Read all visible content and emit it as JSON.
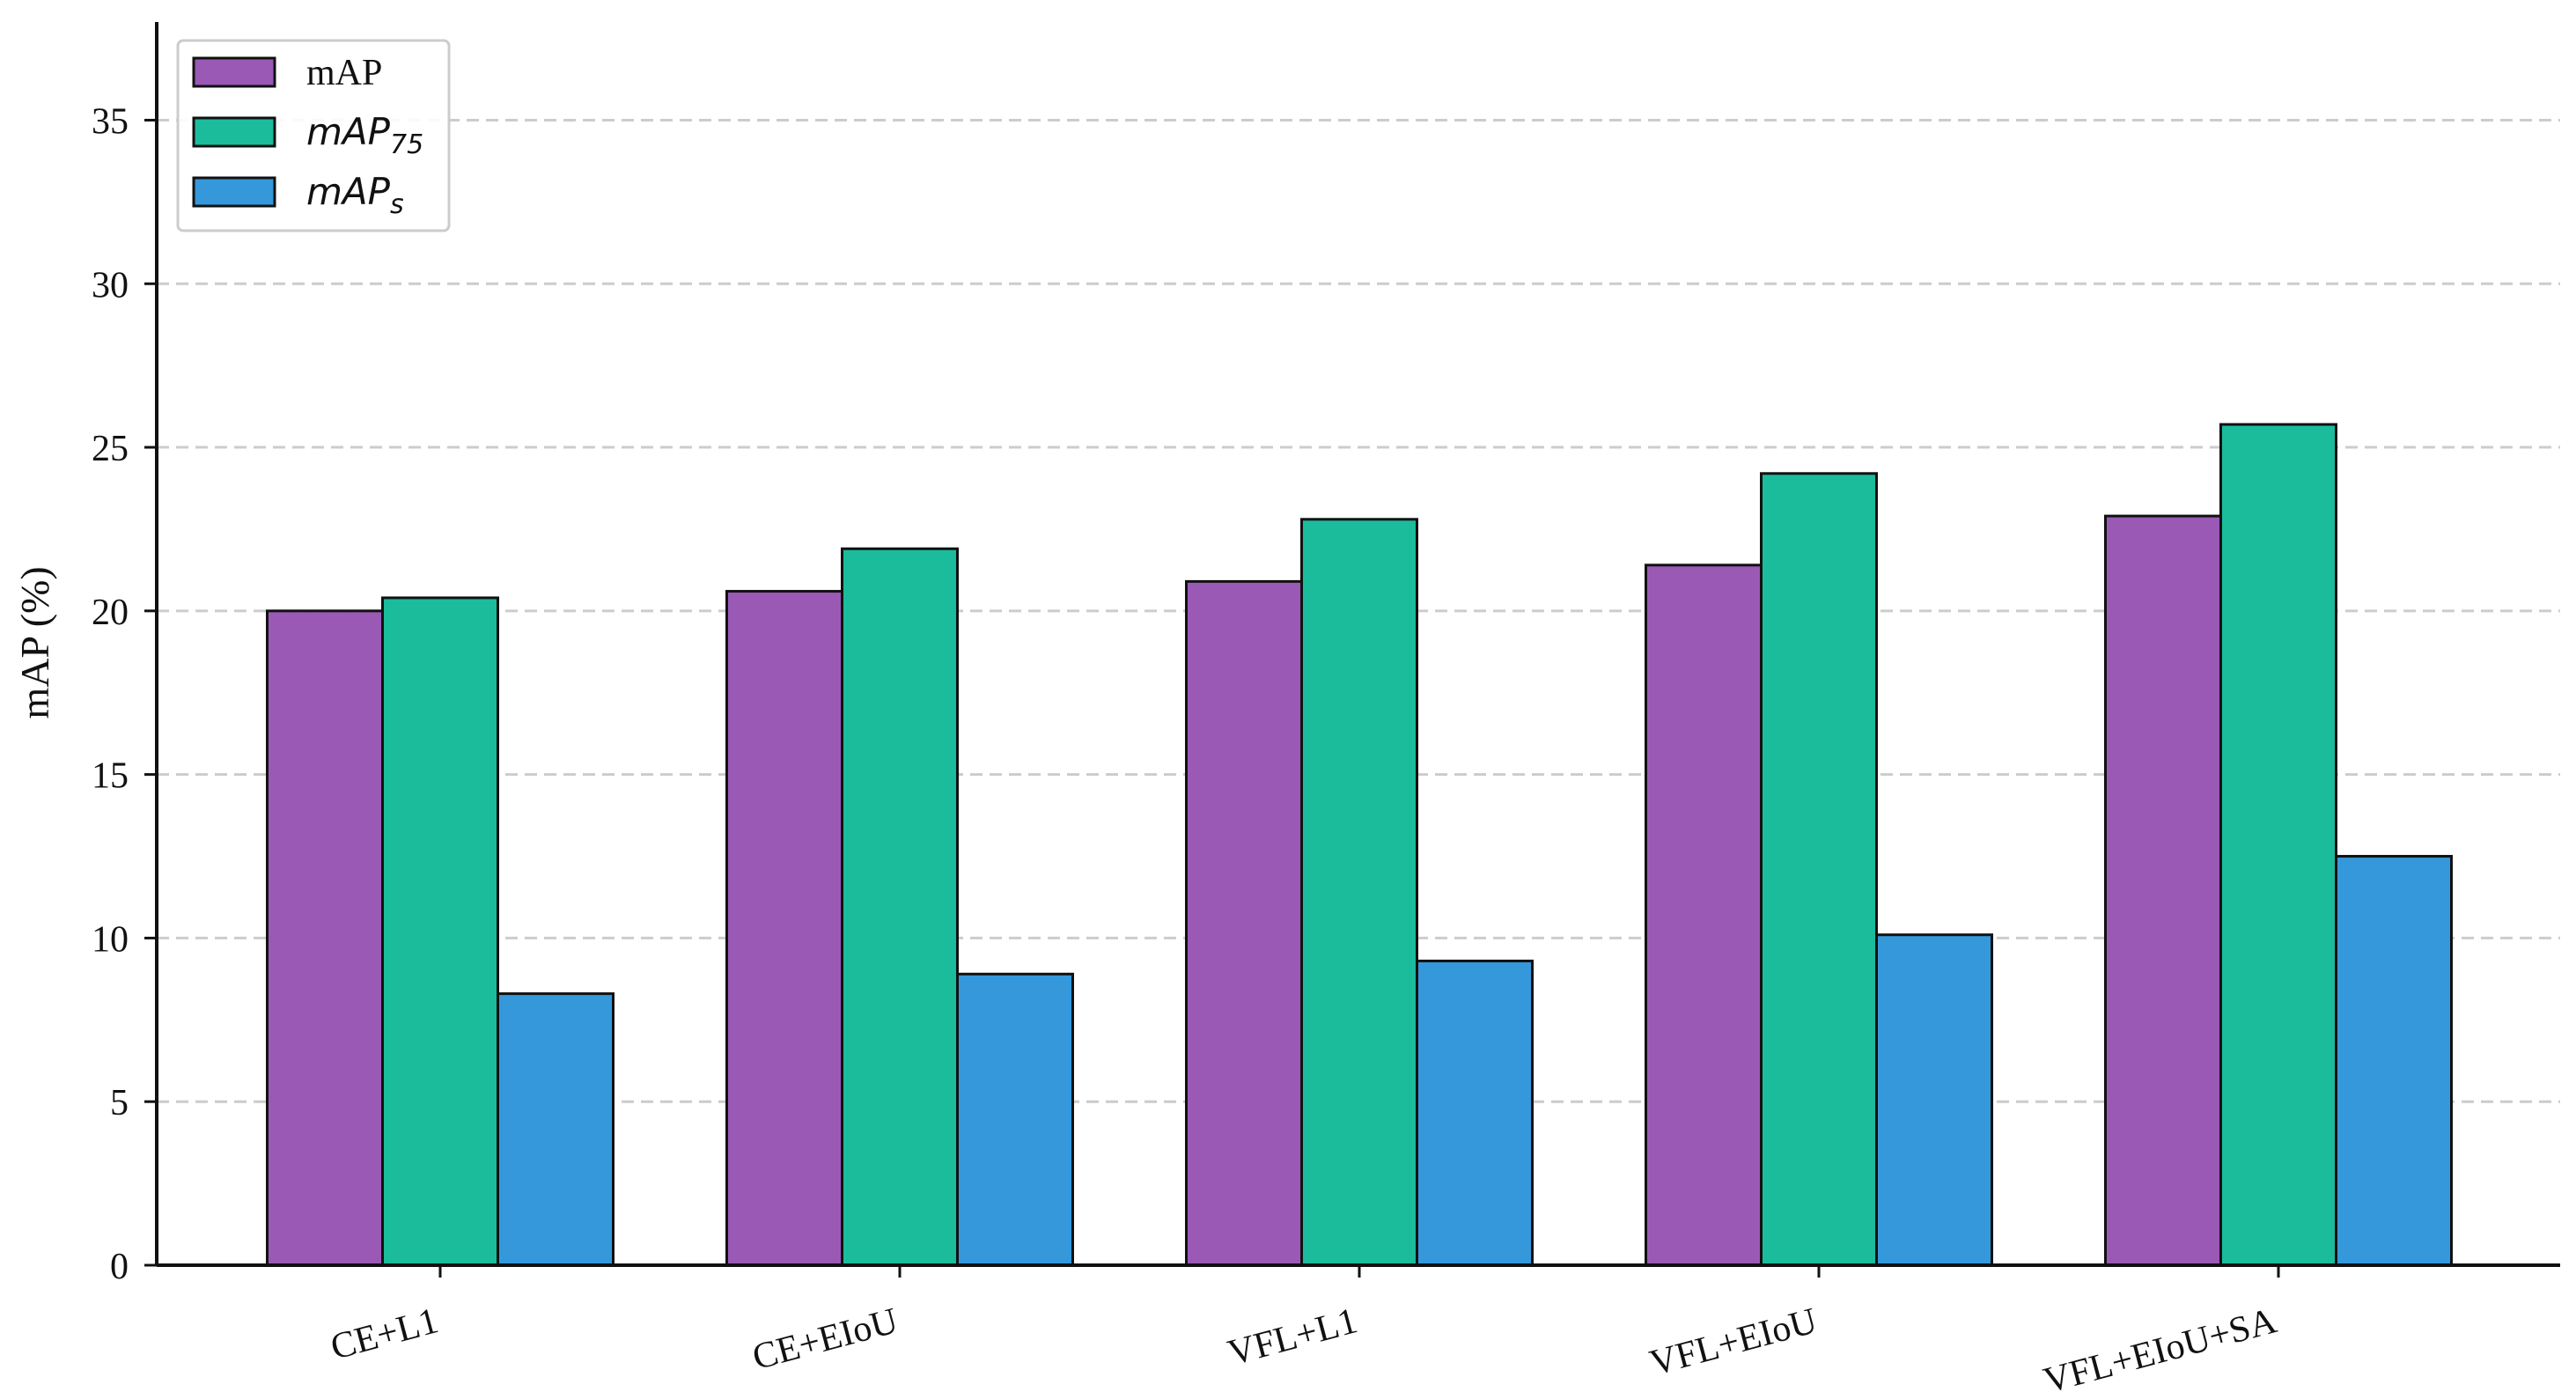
{
  "chart_data": {
    "type": "bar",
    "categories": [
      "CE+L1",
      "CE+EIoU",
      "VFL+L1",
      "VFL+EIoU",
      "VFL+EIoU+SA"
    ],
    "series": [
      {
        "name": "mAP",
        "legend_base": "mAP",
        "legend_sub": "",
        "italic": false,
        "color": "#9b59b6",
        "values": [
          20.0,
          20.6,
          20.9,
          21.4,
          22.9
        ]
      },
      {
        "name": "mAP75",
        "legend_base": "mAP",
        "legend_sub": "75",
        "italic": true,
        "color": "#1abc9c",
        "values": [
          20.4,
          21.9,
          22.8,
          24.2,
          25.7
        ]
      },
      {
        "name": "mAPs",
        "legend_base": "mAP",
        "legend_sub": "s",
        "italic": true,
        "color": "#3498db",
        "values": [
          8.3,
          8.9,
          9.3,
          10.1,
          12.5
        ]
      }
    ],
    "title": "",
    "xlabel": "",
    "ylabel": "mAP (%)",
    "ylim": [
      0,
      38
    ],
    "yticks": [
      0,
      5,
      10,
      15,
      20,
      25,
      30,
      35
    ],
    "grid": "horizontal dashed",
    "legend_position": "top-left",
    "xtick_rotation": "slanted"
  }
}
